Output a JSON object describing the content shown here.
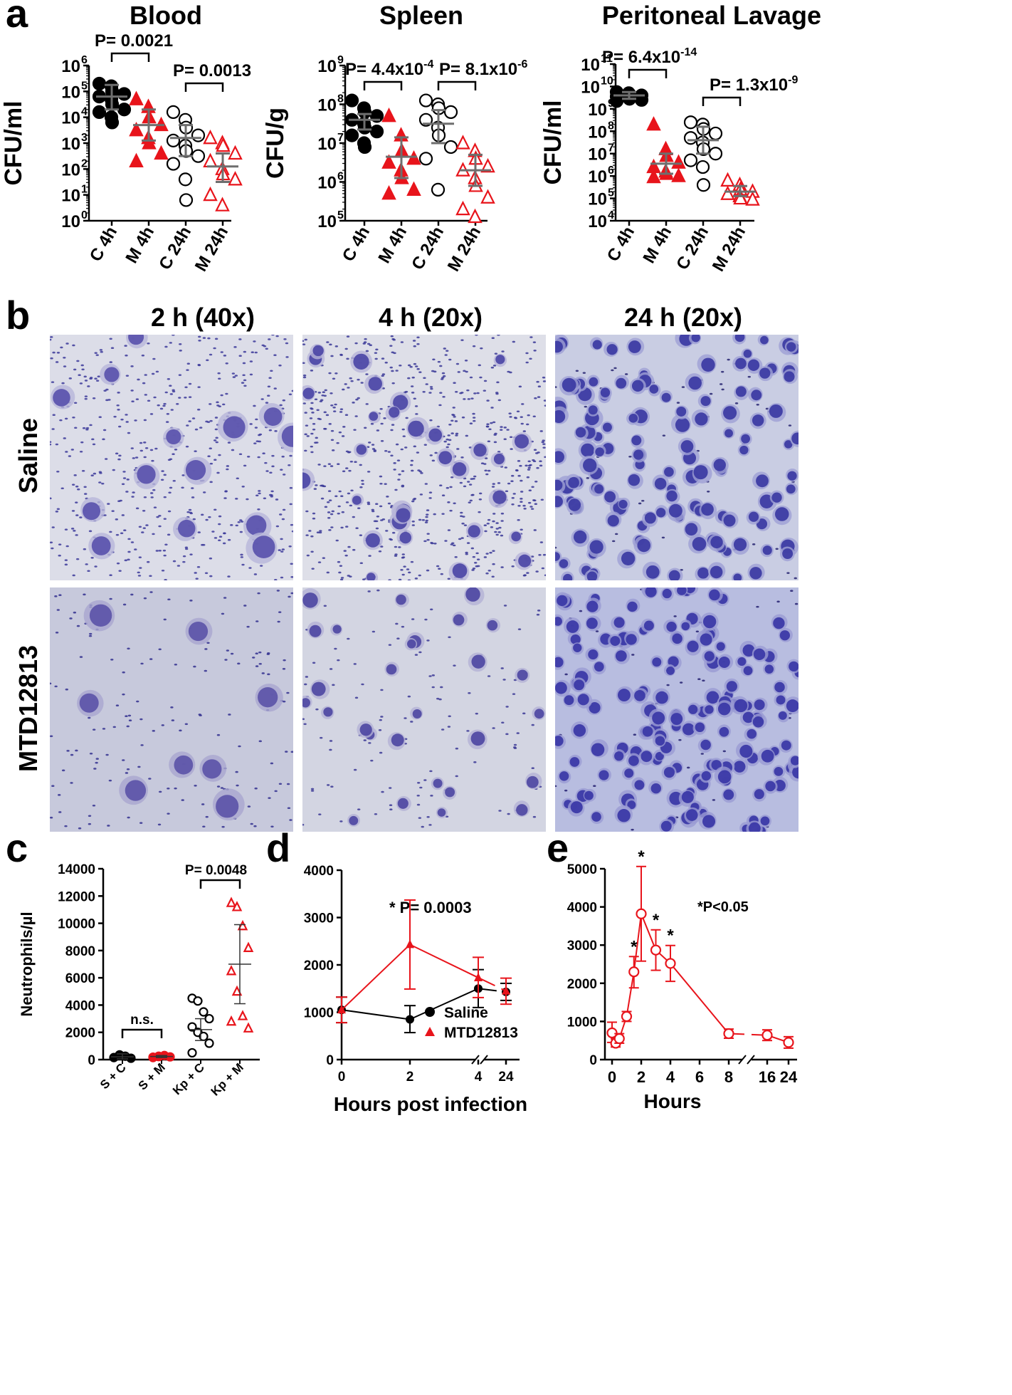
{
  "panel_letters": [
    "a",
    "b",
    "c",
    "d",
    "e"
  ],
  "panel_b": {
    "columns": [
      "2 h (40x)",
      "4 h (20x)",
      "24 h (20x)"
    ],
    "rows": [
      "Saline",
      "MTD12813"
    ]
  },
  "colors": {
    "control": "#000000",
    "mtd": "#e8141b",
    "errorbar": "#6e6e6e",
    "stain": "#4b3fa8",
    "background_slide": "#d9dbe7"
  },
  "chart_data": [
    {
      "id": "a_blood",
      "type": "scatter",
      "title": "Blood",
      "ylabel": "CFU/ml",
      "yscale": "log",
      "ylim": [
        0,
        6
      ],
      "ytick_exponents": [
        "0",
        "1",
        "2",
        "3",
        "4",
        "5",
        "6"
      ],
      "categories": [
        "C 4h",
        "M 4h",
        "C 24h",
        "M 24h"
      ],
      "markers": [
        "filled-circle-black",
        "filled-triangle-red",
        "open-circle-black",
        "open-triangle-red"
      ],
      "series_log10": [
        [
          5.3,
          5.2,
          5.0,
          4.9,
          4.8,
          4.7,
          4.5,
          4.3,
          4.2,
          4.0,
          3.8
        ],
        [
          4.7,
          4.4,
          4.0,
          3.7,
          3.5,
          3.2,
          3.0,
          2.6,
          2.3
        ],
        [
          4.2,
          3.9,
          3.6,
          3.3,
          3.1,
          2.9,
          2.7,
          2.5,
          2.2,
          1.6,
          0.8
        ],
        [
          3.2,
          3.0,
          2.9,
          2.6,
          2.3,
          2.0,
          1.8,
          1.6,
          1.0,
          0.6
        ]
      ],
      "centers_log10": [
        4.8,
        3.7,
        3.2,
        2.1
      ],
      "errors_log10": [
        [
          4.3,
          5.25
        ],
        [
          3.1,
          4.3
        ],
        [
          2.5,
          3.7
        ],
        [
          1.5,
          2.6
        ]
      ],
      "comparisons": [
        {
          "groups": [
            0,
            1
          ],
          "label": "P= 0.0021"
        },
        {
          "groups": [
            2,
            3
          ],
          "label": "P= 0.0013"
        }
      ]
    },
    {
      "id": "a_spleen",
      "type": "scatter",
      "title": "Spleen",
      "ylabel": "CFU/g",
      "yscale": "log",
      "ylim": [
        5,
        9
      ],
      "ytick_exponents": [
        "5",
        "6",
        "7",
        "8",
        "9"
      ],
      "categories": [
        "C 4h",
        "M 4h",
        "C 24h",
        "M 24h"
      ],
      "markers": [
        "filled-circle-black",
        "filled-triangle-red",
        "open-circle-black",
        "open-triangle-red"
      ],
      "series_log10": [
        [
          8.1,
          7.9,
          7.8,
          7.7,
          7.6,
          7.5,
          7.4,
          7.3,
          7.2,
          7.0,
          6.9
        ],
        [
          7.7,
          7.2,
          6.8,
          6.6,
          6.5,
          6.3,
          6.1,
          5.8,
          5.7
        ],
        [
          8.1,
          8.0,
          7.9,
          7.8,
          7.6,
          7.4,
          7.2,
          6.9,
          6.6,
          5.8
        ],
        [
          7.0,
          6.8,
          6.6,
          6.4,
          6.3,
          6.1,
          5.9,
          5.6,
          5.3,
          5.1
        ]
      ],
      "centers_log10": [
        7.6,
        6.65,
        7.5,
        6.3
      ],
      "errors_log10": [
        [
          7.35,
          7.75
        ],
        [
          6.1,
          7.15
        ],
        [
          7.0,
          7.85
        ],
        [
          5.9,
          6.7
        ]
      ],
      "comparisons": [
        {
          "groups": [
            0,
            1
          ],
          "label": "P= 4.4x10",
          "exponent": "-4"
        },
        {
          "groups": [
            2,
            3
          ],
          "label": "P= 8.1x10",
          "exponent": "-6"
        }
      ]
    },
    {
      "id": "a_lavage",
      "type": "scatter",
      "title": "Peritoneal Lavage",
      "ylabel": "CFU/ml",
      "yscale": "log",
      "ylim": [
        4,
        11
      ],
      "ytick_exponents": [
        "4",
        "5",
        "6",
        "7",
        "8",
        "9",
        "10",
        "11"
      ],
      "categories": [
        "C 4h",
        "M 4h",
        "C 24h",
        "M 24h"
      ],
      "markers": [
        "filled-circle-black",
        "filled-triangle-red",
        "open-circle-black",
        "open-triangle-red"
      ],
      "series_log10": [
        [
          9.75,
          9.7,
          9.65,
          9.6,
          9.55,
          9.5,
          9.45,
          9.4,
          9.35
        ],
        [
          8.3,
          7.2,
          6.9,
          6.6,
          6.4,
          6.2,
          6.1,
          6.0,
          5.95
        ],
        [
          8.4,
          8.3,
          8.1,
          7.9,
          7.7,
          7.5,
          7.2,
          7.0,
          6.7,
          6.4,
          5.6
        ],
        [
          5.8,
          5.6,
          5.4,
          5.3,
          5.2,
          5.1,
          5.0,
          4.95
        ]
      ],
      "centers_log10": [
        9.6,
        6.55,
        7.6,
        5.3
      ],
      "errors_log10": [
        [
          9.45,
          9.75
        ],
        [
          6.1,
          7.0
        ],
        [
          7.0,
          8.2
        ],
        [
          5.1,
          5.55
        ]
      ],
      "comparisons": [
        {
          "groups": [
            0,
            1
          ],
          "label": "P= 6.4x10",
          "exponent": "-14"
        },
        {
          "groups": [
            2,
            3
          ],
          "label": "P= 1.3x10",
          "exponent": "-9"
        }
      ]
    },
    {
      "id": "c",
      "type": "scatter",
      "ylabel": "Neutrophils/µl",
      "ylim": [
        0,
        14000
      ],
      "yticks": [
        "0",
        "2000",
        "4000",
        "6000",
        "8000",
        "10000",
        "12000",
        "14000"
      ],
      "categories": [
        "S + C",
        "S + M",
        "Kp + C",
        "Kp + M"
      ],
      "category_italic_prefix": [
        "",
        "",
        "Kp",
        "Kp"
      ],
      "markers": [
        "filled-circle-black",
        "filled-circle-red",
        "open-circle-black",
        "open-triangle-red"
      ],
      "series": [
        [
          150,
          350,
          250,
          100
        ],
        [
          150,
          250,
          300,
          200,
          180,
          220
        ],
        [
          4500,
          4300,
          3500,
          3000,
          2400,
          2000,
          1700,
          1200,
          500
        ],
        [
          11500,
          11200,
          9800,
          8200,
          6500,
          5000,
          3200,
          2300,
          2800
        ]
      ],
      "means": [
        200,
        230,
        2200,
        7000
      ],
      "errors": [
        [
          50,
          420
        ],
        [
          150,
          300
        ],
        [
          1400,
          3000
        ],
        [
          4100,
          9900
        ]
      ],
      "comparisons": [
        {
          "groups": [
            0,
            1
          ],
          "label": "n.s."
        },
        {
          "groups": [
            2,
            3
          ],
          "label": "P= 0.0048"
        }
      ]
    },
    {
      "id": "d",
      "type": "line",
      "xlabel": "Hours post infection",
      "ylim": [
        0,
        4000
      ],
      "yticks": [
        "0",
        "1000",
        "2000",
        "3000",
        "4000"
      ],
      "xticks": [
        "0",
        "2",
        "4",
        "24"
      ],
      "annotation": "* P= 0.0003",
      "series": [
        {
          "name": "Saline",
          "marker": "circle",
          "color": "#000000",
          "x": [
            0,
            2,
            4,
            24
          ],
          "y": [
            1050,
            850,
            1500,
            1430
          ],
          "err_low": [
            780,
            570,
            1100,
            1250
          ],
          "err_high": [
            1320,
            1140,
            1900,
            1610
          ]
        },
        {
          "name": "MTD12813",
          "marker": "triangle",
          "color": "#e8141b",
          "x": [
            0,
            2,
            4,
            24
          ],
          "y": [
            1050,
            2430,
            1730,
            1450
          ],
          "err_low": [
            780,
            1490,
            1310,
            1170
          ],
          "err_high": [
            1320,
            3370,
            2160,
            1720
          ]
        }
      ]
    },
    {
      "id": "e",
      "type": "line",
      "xlabel": "Hours",
      "ylim": [
        0,
        5000
      ],
      "yticks": [
        "0",
        "1000",
        "2000",
        "3000",
        "4000",
        "5000"
      ],
      "xticks": [
        "0",
        "2",
        "4",
        "6",
        "8",
        "16",
        "24"
      ],
      "annotation": "*P<0.05",
      "series": [
        {
          "marker": "open-circle",
          "color": "#e8141b",
          "x": [
            0,
            0.25,
            0.5,
            1,
            1.5,
            2,
            3,
            4,
            8,
            16,
            24
          ],
          "y": [
            700,
            430,
            550,
            1130,
            2300,
            3820,
            2870,
            2520,
            680,
            640,
            450
          ],
          "err_low": [
            450,
            330,
            430,
            1000,
            1880,
            2580,
            2340,
            2050,
            560,
            500,
            300
          ],
          "err_high": [
            980,
            540,
            680,
            1260,
            2700,
            5060,
            3400,
            2990,
            800,
            780,
            600
          ],
          "starred": [
            false,
            false,
            false,
            false,
            true,
            true,
            true,
            true,
            false,
            false,
            false
          ]
        }
      ]
    }
  ]
}
